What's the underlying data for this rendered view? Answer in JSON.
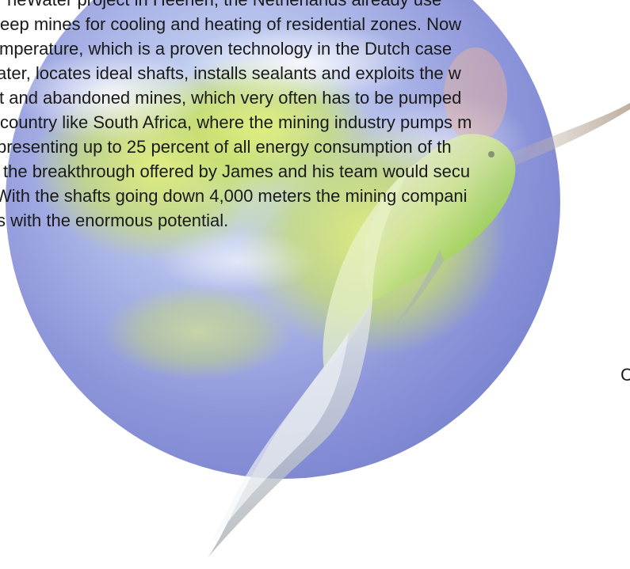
{
  "document": {
    "lines": [
      "neWater project in Heerlen, the Netherlands already use",
      "eep mines for cooling and heating of residential zones. Now",
      "mperature, which is a proven technology in the Dutch case",
      "ater, locates ideal shafts, installs sealants and exploits the w",
      "t and abandoned mines, which very often has to be pumped",
      "country like South Africa, where the mining industry pumps m",
      "presenting up to 25 percent of all energy consumption of th",
      "the breakthrough offered by James and his team would secu",
      "With the shafts going down 4,000 meters the mining compani",
      "s with the enormous potential."
    ],
    "page_letter": "C"
  },
  "colors": {
    "text": "#1a1a1a",
    "globe_blue": "#8a92d8",
    "globe_green": "#b9d65c",
    "bird_green": "#8fcf4a"
  }
}
